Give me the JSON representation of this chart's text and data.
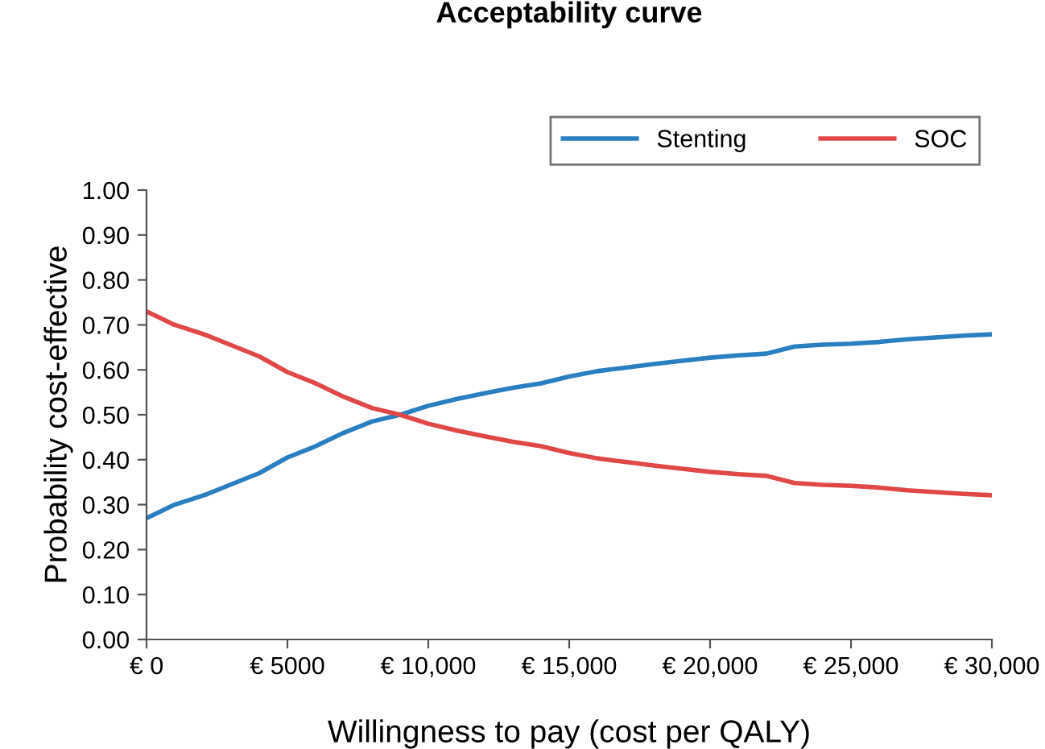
{
  "chart_data": {
    "type": "line",
    "title": "Acceptability curve",
    "xlabel": "Willingness to pay (cost per QALY)",
    "ylabel": "Probability cost-effective",
    "x": [
      0,
      500,
      1000,
      2000,
      3000,
      4000,
      5000,
      6000,
      7000,
      8000,
      9000,
      10000,
      11000,
      12000,
      13000,
      14000,
      15000,
      16000,
      17000,
      18000,
      19000,
      20000,
      21000,
      22000,
      23000,
      24000,
      25000,
      26000,
      27000,
      28000,
      29000,
      30000
    ],
    "series": [
      {
        "name": "Stenting",
        "color": "#2a7fc1",
        "values": [
          0.27,
          0.285,
          0.3,
          0.32,
          0.345,
          0.37,
          0.405,
          0.43,
          0.46,
          0.485,
          0.5,
          0.52,
          0.535,
          0.548,
          0.56,
          0.57,
          0.585,
          0.597,
          0.605,
          0.613,
          0.62,
          0.627,
          0.632,
          0.636,
          0.652,
          0.656,
          0.658,
          0.662,
          0.668,
          0.672,
          0.676,
          0.679
        ]
      },
      {
        "name": "SOC",
        "color": "#e04848",
        "values": [
          0.73,
          0.715,
          0.7,
          0.68,
          0.655,
          0.63,
          0.595,
          0.57,
          0.54,
          0.515,
          0.5,
          0.48,
          0.465,
          0.452,
          0.44,
          0.43,
          0.415,
          0.403,
          0.395,
          0.387,
          0.38,
          0.373,
          0.368,
          0.364,
          0.348,
          0.344,
          0.342,
          0.338,
          0.332,
          0.328,
          0.324,
          0.321
        ]
      }
    ],
    "xlim": [
      0,
      30000
    ],
    "xticks": [
      {
        "value": 0,
        "label": "€ 0"
      },
      {
        "value": 5000,
        "label": "€ 5000"
      },
      {
        "value": 10000,
        "label": "€ 10,000"
      },
      {
        "value": 15000,
        "label": "€ 15,000"
      },
      {
        "value": 20000,
        "label": "€ 20,000"
      },
      {
        "value": 25000,
        "label": "€ 25,000"
      },
      {
        "value": 30000,
        "label": "€ 30,000"
      }
    ],
    "ylim": [
      0,
      1
    ],
    "yticks": [
      {
        "value": 0,
        "label": "0.00"
      },
      {
        "value": 0.1,
        "label": "0.10"
      },
      {
        "value": 0.2,
        "label": "0.20"
      },
      {
        "value": 0.3,
        "label": "0.30"
      },
      {
        "value": 0.4,
        "label": "0.40"
      },
      {
        "value": 0.5,
        "label": "0.50"
      },
      {
        "value": 0.6,
        "label": "0.60"
      },
      {
        "value": 0.7,
        "label": "0.70"
      },
      {
        "value": 0.8,
        "label": "0.80"
      },
      {
        "value": 0.9,
        "label": "0.90"
      },
      {
        "value": 1,
        "label": "1.00"
      }
    ],
    "grid": false,
    "legend": "top right",
    "marker": "none",
    "line_style": "solid"
  }
}
